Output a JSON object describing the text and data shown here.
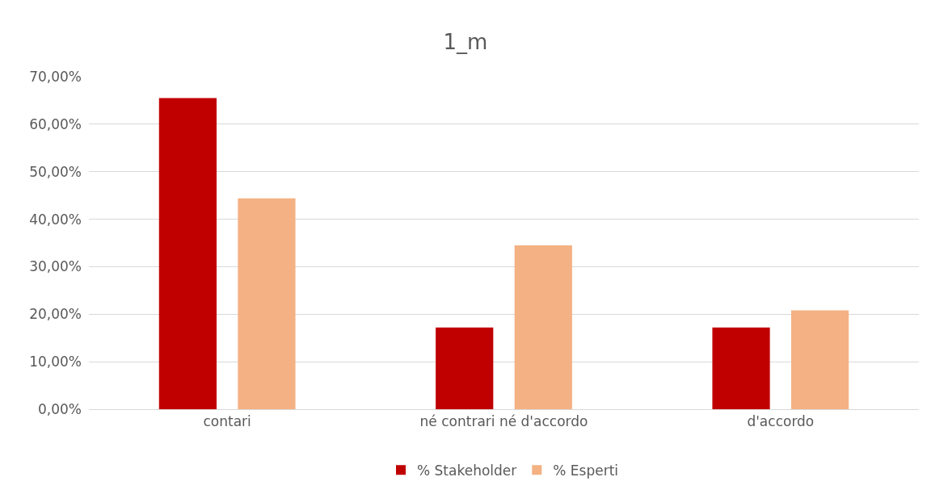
{
  "chart_data": {
    "type": "bar",
    "title": "1_m",
    "categories": [
      "contari",
      "né contrari né d'accordo",
      "d'accordo"
    ],
    "series": [
      {
        "name": "% Stakeholder",
        "color": "#c00000",
        "values": [
          65.5,
          17.2,
          17.2
        ]
      },
      {
        "name": "% Esperti",
        "color": "#f4b183",
        "values": [
          44.4,
          34.5,
          20.8
        ]
      }
    ],
    "ylim": [
      0,
      70
    ],
    "yticks": [
      {
        "value": 0,
        "label": "0,00%"
      },
      {
        "value": 10,
        "label": "10,00%"
      },
      {
        "value": 20,
        "label": "20,00%"
      },
      {
        "value": 30,
        "label": "30,00%"
      },
      {
        "value": 40,
        "label": "40,00%"
      },
      {
        "value": 50,
        "label": "50,00%"
      },
      {
        "value": 60,
        "label": "60,00%"
      },
      {
        "value": 70,
        "label": "70,00%"
      }
    ],
    "grid": "y",
    "legend": "bottom"
  }
}
